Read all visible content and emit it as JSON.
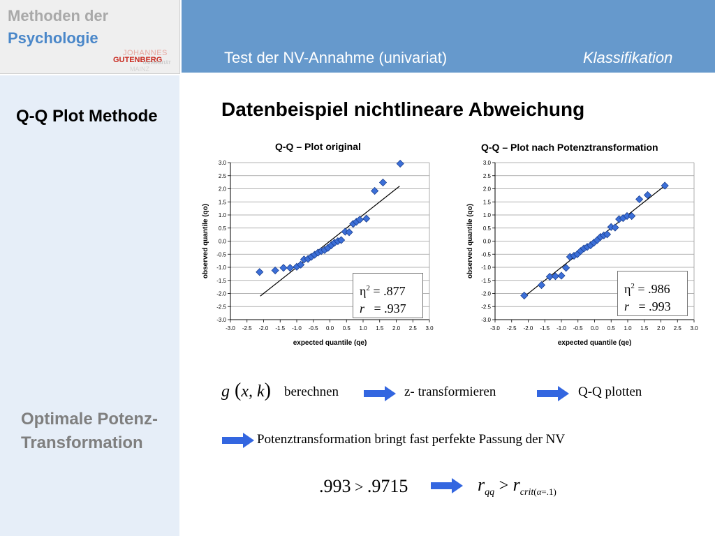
{
  "logo": {
    "line1": "Methoden der",
    "line2": "Psychologie",
    "uni_line1": "JOHANNES",
    "uni_line2": "GUTENBERG",
    "uni_line3": "UNIVERSITÄT",
    "uni_line4": "MAINZ"
  },
  "header": {
    "title": "Test der NV-Annahme (univariat)",
    "right": "Klassifikation"
  },
  "sidebar": {
    "heading1": "Q-Q Plot Methode",
    "heading2": "Optimale Potenz-Transformation"
  },
  "main": {
    "title": "Datenbeispiel nichtlineare Abweichung"
  },
  "colors": {
    "header_bg": "#6699cc",
    "sidebar_bg": "#e6eef8",
    "marker": "#3c6fd8",
    "arrow": "#3366e0"
  },
  "charts": [
    {
      "title": "Q-Q – Plot original",
      "stat_eta_symbol": "η",
      "stat_eta_sup": "2",
      "stat_eta_value": "= .877",
      "stat_r_symbol": "r",
      "stat_r_value": "= .937"
    },
    {
      "title": "Q-Q – Plot nach Potenztransformation",
      "stat_eta_symbol": "η",
      "stat_eta_sup": "2",
      "stat_eta_value": "= .986",
      "stat_r_symbol": "r",
      "stat_r_value": "= .993"
    }
  ],
  "chart_data": [
    {
      "type": "scatter",
      "title": "Q-Q – Plot original",
      "xlabel": "expected quantile (qe)",
      "ylabel": "observed quantile (qo)",
      "xlim": [
        -3.0,
        3.0
      ],
      "ylim": [
        -3.0,
        3.0
      ],
      "x_ticks": [
        "-3.0",
        "-2.5",
        "-2.0",
        "-1.5",
        "-1.0",
        "-0.5",
        "0.0",
        "0.5",
        "1.0",
        "1.5",
        "2.0",
        "2.5",
        "3.0"
      ],
      "y_ticks": [
        "3.0",
        "2.5",
        "2.0",
        "1.5",
        "1.0",
        "0.5",
        "0.0",
        "-0.5",
        "-1.0",
        "-1.5",
        "-2.0",
        "-2.5",
        "-3.0"
      ],
      "grid": "horizontal",
      "reference_line": [
        [
          -2.1,
          -2.1
        ],
        [
          2.1,
          2.1
        ]
      ],
      "points": [
        [
          -2.12,
          -1.18
        ],
        [
          -1.65,
          -1.12
        ],
        [
          -1.4,
          -1.02
        ],
        [
          -1.2,
          -1.02
        ],
        [
          -1.0,
          -0.98
        ],
        [
          -0.88,
          -0.9
        ],
        [
          -0.78,
          -0.7
        ],
        [
          -0.66,
          -0.68
        ],
        [
          -0.56,
          -0.6
        ],
        [
          -0.46,
          -0.52
        ],
        [
          -0.36,
          -0.44
        ],
        [
          -0.26,
          -0.38
        ],
        [
          -0.16,
          -0.34
        ],
        [
          -0.06,
          -0.26
        ],
        [
          0.04,
          -0.16
        ],
        [
          0.14,
          -0.06
        ],
        [
          0.24,
          0.0
        ],
        [
          0.34,
          0.04
        ],
        [
          0.46,
          0.36
        ],
        [
          0.58,
          0.34
        ],
        [
          0.7,
          0.66
        ],
        [
          0.8,
          0.74
        ],
        [
          0.9,
          0.82
        ],
        [
          1.1,
          0.86
        ],
        [
          1.35,
          1.92
        ],
        [
          1.6,
          2.24
        ],
        [
          2.12,
          2.96
        ]
      ]
    },
    {
      "type": "scatter",
      "title": "Q-Q – Plot nach Potenztransformation",
      "xlabel": "expected quantile (qe)",
      "ylabel": "observed quantile (qo)",
      "xlim": [
        -3.0,
        3.0
      ],
      "ylim": [
        -3.0,
        3.0
      ],
      "x_ticks": [
        "-3.0",
        "-2.5",
        "-2.0",
        "-1.5",
        "-1.0",
        "-0.5",
        "0.0",
        "0.5",
        "1.0",
        "1.5",
        "2.0",
        "2.5",
        "3.0"
      ],
      "y_ticks": [
        "3.0",
        "2.5",
        "2.0",
        "1.5",
        "1.0",
        "0.5",
        "0.0",
        "-0.5",
        "-1.0",
        "-1.5",
        "-2.0",
        "-2.5",
        "-3.0"
      ],
      "grid": "horizontal",
      "reference_line": [
        [
          -2.1,
          -2.1
        ],
        [
          2.1,
          2.1
        ]
      ],
      "points": [
        [
          -2.12,
          -2.08
        ],
        [
          -1.6,
          -1.68
        ],
        [
          -1.35,
          -1.36
        ],
        [
          -1.18,
          -1.34
        ],
        [
          -1.0,
          -1.32
        ],
        [
          -0.86,
          -1.02
        ],
        [
          -0.74,
          -0.6
        ],
        [
          -0.62,
          -0.56
        ],
        [
          -0.52,
          -0.5
        ],
        [
          -0.42,
          -0.38
        ],
        [
          -0.32,
          -0.28
        ],
        [
          -0.22,
          -0.22
        ],
        [
          -0.12,
          -0.16
        ],
        [
          -0.02,
          -0.06
        ],
        [
          0.08,
          0.04
        ],
        [
          0.18,
          0.16
        ],
        [
          0.28,
          0.22
        ],
        [
          0.38,
          0.26
        ],
        [
          0.5,
          0.54
        ],
        [
          0.62,
          0.52
        ],
        [
          0.74,
          0.84
        ],
        [
          0.86,
          0.88
        ],
        [
          0.98,
          0.96
        ],
        [
          1.12,
          0.96
        ],
        [
          1.35,
          1.6
        ],
        [
          1.6,
          1.76
        ],
        [
          2.12,
          2.12
        ]
      ]
    }
  ],
  "process": {
    "formula_g": "g",
    "formula_args": "x, k",
    "step1": "berechnen",
    "step2": "z- transformieren",
    "step3": "Q-Q plotten",
    "conclusion": "Potenztransformation bringt fast perfekte Passung der NV",
    "compare_left": ".993",
    "compare_op": ">",
    "compare_right": ".9715",
    "r_symbol": "r",
    "r_qq_sub": "qq",
    "r_gt": ">",
    "r_crit_sub": "crit",
    "r_alpha": "α",
    "r_alpha_val": "=.1"
  }
}
